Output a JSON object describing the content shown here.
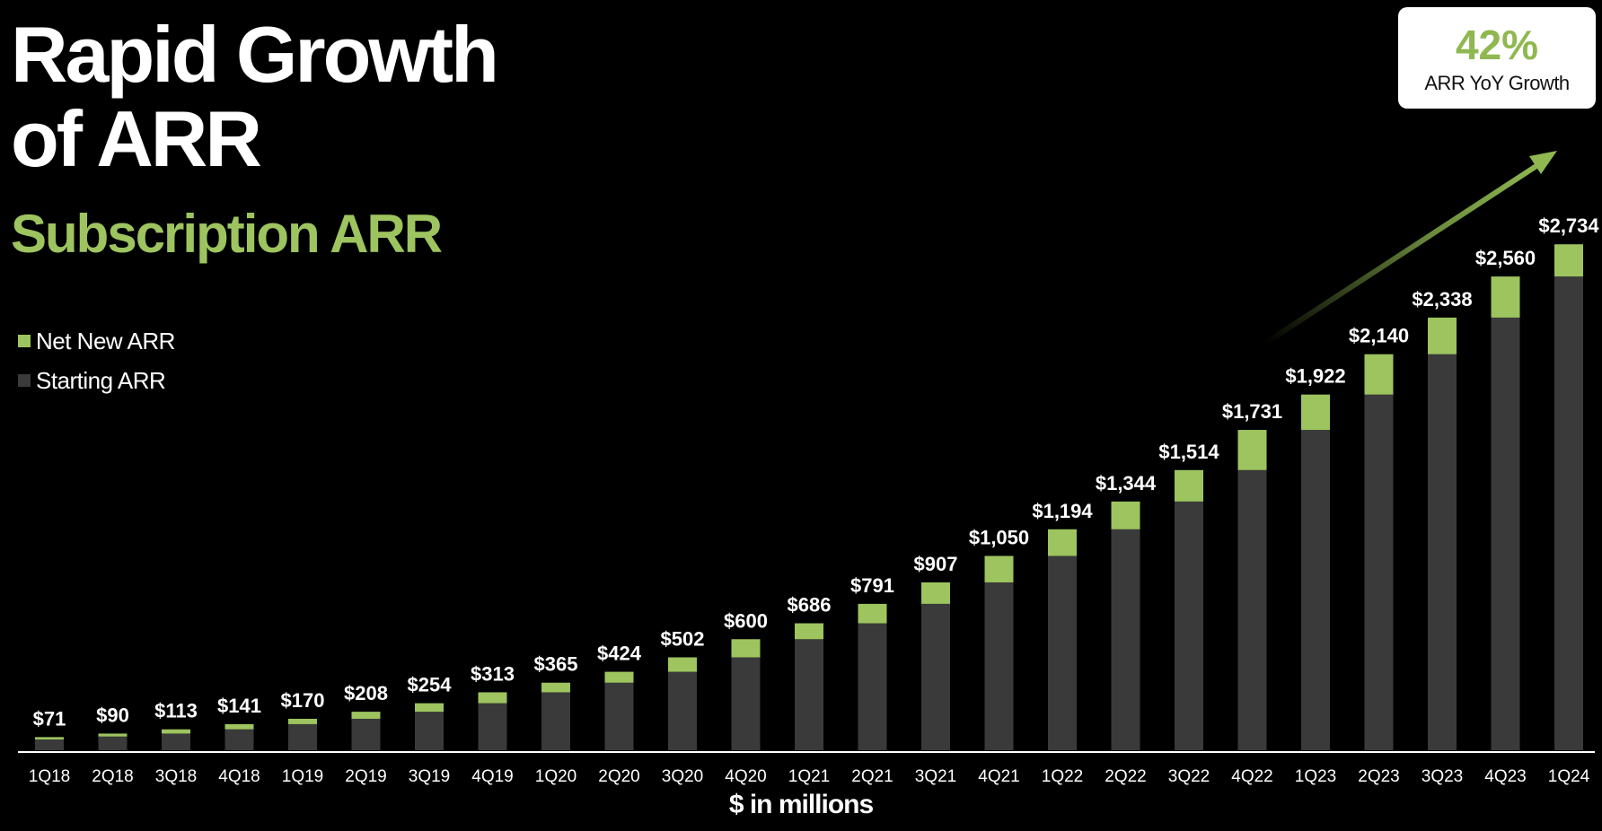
{
  "header": {
    "title_line1": "Rapid Growth",
    "title_line2": "of ARR",
    "subtitle": "Subscription ARR"
  },
  "badge": {
    "value": "42%",
    "label": "ARR YoY Growth"
  },
  "colors": {
    "net_new": "#9dc45f",
    "starting": "#3a3a3a",
    "background": "#000000",
    "axis": "#ffffff"
  },
  "chart_data": {
    "type": "bar",
    "stacked": true,
    "title": "Subscription ARR",
    "xlabel": "$ in millions",
    "ylabel": "",
    "ylim": [
      0,
      2900
    ],
    "legend_position": "left",
    "categories": [
      "1Q18",
      "2Q18",
      "3Q18",
      "4Q18",
      "1Q19",
      "2Q19",
      "3Q19",
      "4Q19",
      "1Q20",
      "2Q20",
      "3Q20",
      "4Q20",
      "1Q21",
      "2Q21",
      "3Q21",
      "4Q21",
      "1Q22",
      "2Q22",
      "3Q22",
      "4Q22",
      "1Q23",
      "2Q23",
      "3Q23",
      "4Q23",
      "1Q24"
    ],
    "totals": [
      71,
      90,
      113,
      141,
      170,
      208,
      254,
      313,
      365,
      424,
      502,
      600,
      686,
      791,
      907,
      1050,
      1194,
      1344,
      1514,
      1731,
      1922,
      2140,
      2338,
      2560,
      2734
    ],
    "total_labels": [
      "$71",
      "$90",
      "$113",
      "$141",
      "$170",
      "$208",
      "$254",
      "$313",
      "$365",
      "$424",
      "$502",
      "$600",
      "$686",
      "$791",
      "$907",
      "$1,050",
      "$1,194",
      "$1,344",
      "$1,514",
      "$1,731",
      "$1,922",
      "$2,140",
      "$2,338",
      "$2,560",
      "$2,734"
    ],
    "series": [
      {
        "name": "Starting ARR",
        "values": [
          58,
          74,
          90,
          113,
          141,
          170,
          208,
          254,
          313,
          365,
          424,
          502,
          600,
          686,
          791,
          907,
          1050,
          1194,
          1344,
          1514,
          1731,
          1922,
          2140,
          2338,
          2560
        ]
      },
      {
        "name": "Net New ARR",
        "values": [
          13,
          16,
          23,
          28,
          29,
          38,
          46,
          59,
          52,
          59,
          78,
          98,
          86,
          105,
          116,
          143,
          144,
          150,
          170,
          217,
          191,
          218,
          198,
          222,
          174
        ]
      }
    ],
    "legend": [
      "Net New ARR",
      "Starting ARR"
    ],
    "annotation": "growth arrow"
  }
}
